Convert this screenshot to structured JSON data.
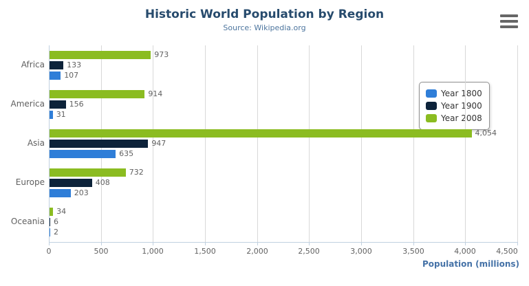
{
  "chart_data": {
    "type": "bar",
    "title": "Historic World Population by Region",
    "subtitle": "Source: Wikipedia.org",
    "xlabel": "Population (millions)",
    "categories": [
      "Africa",
      "America",
      "Asia",
      "Europe",
      "Oceania"
    ],
    "series": [
      {
        "name": "Year 1800",
        "color": "#2f7ed8",
        "values": [
          107,
          31,
          635,
          203,
          2
        ]
      },
      {
        "name": "Year 1900",
        "color": "#0d233a",
        "values": [
          133,
          156,
          947,
          408,
          6
        ]
      },
      {
        "name": "Year 2008",
        "color": "#8bbc21",
        "values": [
          973,
          914,
          4054,
          732,
          34
        ]
      }
    ],
    "xlim": [
      0,
      4500
    ],
    "tick_interval": 500,
    "grid": "vertical",
    "legend_position": "right-inside",
    "bar_order_top_to_bottom": [
      "Year 2008",
      "Year 1900",
      "Year 1800"
    ]
  },
  "colors": {
    "title": "#274b6d",
    "subtitle": "#4d759e",
    "gridline": "#d8d8d8",
    "axis_line": "#c0d0e0",
    "labels": "#606060",
    "axis_title": "#4572a7",
    "legend_border": "#909090",
    "menu_icon": "#666666"
  },
  "menu": {
    "icon": "hamburger-menu-icon"
  }
}
